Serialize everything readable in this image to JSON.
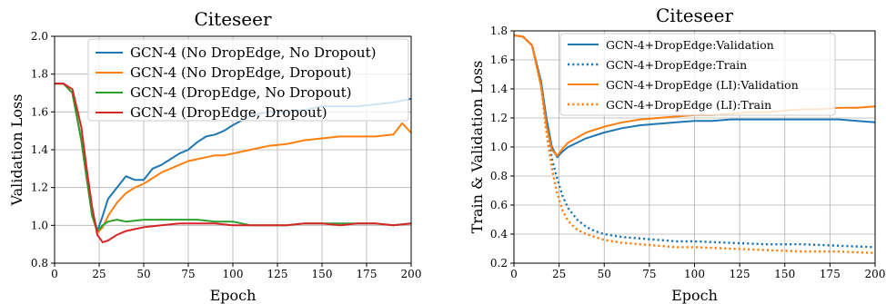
{
  "chart_data": [
    {
      "type": "line",
      "title": "Citeseer",
      "xlabel": "Epoch",
      "ylabel": "Validation Loss",
      "xlim": [
        0,
        200
      ],
      "ylim": [
        0.8,
        2.0
      ],
      "xticks": [
        0,
        25,
        50,
        75,
        100,
        125,
        150,
        175,
        200
      ],
      "yticks": [
        0.8,
        1.0,
        1.2,
        1.4,
        1.6,
        1.8,
        2.0
      ],
      "xtick_labels": [
        "0",
        "25",
        "50",
        "75",
        "100",
        "125",
        "150",
        "175",
        "200"
      ],
      "ytick_labels": [
        "0.8",
        "1.0",
        "1.2",
        "1.4",
        "1.6",
        "1.8",
        "2.0"
      ],
      "grid": true,
      "legend_position": "top-right",
      "series": [
        {
          "name": "GCN-4 (No DropEdge, No Dropout)",
          "color": "#1f77b4",
          "style": "solid",
          "x": [
            0,
            5,
            10,
            15,
            18,
            21,
            24,
            27,
            30,
            35,
            40,
            45,
            50,
            55,
            60,
            65,
            70,
            75,
            80,
            85,
            90,
            95,
            100,
            110,
            120,
            130,
            140,
            150,
            160,
            170,
            180,
            190,
            200
          ],
          "y": [
            1.75,
            1.75,
            1.7,
            1.45,
            1.25,
            1.08,
            0.97,
            1.05,
            1.14,
            1.2,
            1.26,
            1.24,
            1.24,
            1.3,
            1.32,
            1.35,
            1.38,
            1.4,
            1.44,
            1.47,
            1.48,
            1.5,
            1.53,
            1.58,
            1.6,
            1.6,
            1.61,
            1.63,
            1.63,
            1.63,
            1.64,
            1.65,
            1.67
          ]
        },
        {
          "name": "GCN-4 (No DropEdge, Dropout)",
          "color": "#ff7f0e",
          "style": "solid",
          "x": [
            0,
            5,
            10,
            15,
            18,
            21,
            24,
            27,
            30,
            35,
            40,
            45,
            50,
            55,
            60,
            65,
            70,
            75,
            80,
            85,
            90,
            95,
            100,
            110,
            120,
            130,
            140,
            150,
            160,
            170,
            180,
            190,
            195,
            200
          ],
          "y": [
            1.75,
            1.75,
            1.7,
            1.45,
            1.25,
            1.06,
            0.96,
            0.99,
            1.05,
            1.12,
            1.17,
            1.2,
            1.22,
            1.25,
            1.28,
            1.3,
            1.32,
            1.34,
            1.35,
            1.36,
            1.37,
            1.37,
            1.38,
            1.4,
            1.42,
            1.43,
            1.45,
            1.46,
            1.47,
            1.47,
            1.47,
            1.48,
            1.54,
            1.49
          ]
        },
        {
          "name": "GCN-4 (DropEdge, No Dropout)",
          "color": "#2ca02c",
          "style": "solid",
          "x": [
            0,
            5,
            10,
            15,
            18,
            21,
            24,
            27,
            30,
            35,
            40,
            50,
            60,
            70,
            80,
            90,
            100,
            110,
            120,
            130,
            140,
            150,
            160,
            170,
            180,
            190,
            200
          ],
          "y": [
            1.75,
            1.75,
            1.7,
            1.45,
            1.25,
            1.05,
            0.97,
            1.0,
            1.02,
            1.03,
            1.02,
            1.03,
            1.03,
            1.03,
            1.03,
            1.02,
            1.02,
            1.0,
            1.0,
            1.0,
            1.01,
            1.01,
            1.01,
            1.01,
            1.01,
            1.0,
            1.01
          ]
        },
        {
          "name": "GCN-4 (DropEdge, Dropout)",
          "color": "#d62728",
          "style": "solid",
          "x": [
            0,
            5,
            10,
            15,
            18,
            21,
            24,
            27,
            30,
            35,
            40,
            50,
            60,
            70,
            80,
            90,
            100,
            110,
            120,
            130,
            140,
            150,
            160,
            170,
            180,
            190,
            200
          ],
          "y": [
            1.75,
            1.75,
            1.72,
            1.52,
            1.3,
            1.1,
            0.95,
            0.91,
            0.92,
            0.95,
            0.97,
            0.99,
            1.0,
            1.01,
            1.01,
            1.01,
            1.0,
            1.0,
            1.0,
            1.0,
            1.01,
            1.01,
            1.0,
            1.01,
            1.01,
            1.0,
            1.01
          ]
        }
      ]
    },
    {
      "type": "line",
      "title": "Citeseer",
      "xlabel": "Epoch",
      "ylabel": "Train & Validation Loss",
      "xlim": [
        0,
        200
      ],
      "ylim": [
        0.2,
        1.8
      ],
      "xticks": [
        0,
        25,
        50,
        75,
        100,
        125,
        150,
        175,
        200
      ],
      "yticks": [
        0.2,
        0.4,
        0.6,
        0.8,
        1.0,
        1.2,
        1.4,
        1.6,
        1.8
      ],
      "xtick_labels": [
        "0",
        "25",
        "50",
        "75",
        "100",
        "125",
        "150",
        "175",
        "200"
      ],
      "ytick_labels": [
        "0.2",
        "0.4",
        "0.6",
        "0.8",
        "1.0",
        "1.2",
        "1.4",
        "1.6",
        "1.8"
      ],
      "grid": true,
      "legend_position": "top-right",
      "series": [
        {
          "name": "GCN-4+DropEdge:Validation",
          "color": "#1f77b4",
          "style": "solid",
          "x": [
            0,
            5,
            10,
            15,
            18,
            21,
            24,
            27,
            30,
            40,
            50,
            60,
            70,
            80,
            90,
            100,
            110,
            120,
            130,
            140,
            150,
            160,
            170,
            180,
            190,
            200
          ],
          "y": [
            1.77,
            1.76,
            1.7,
            1.45,
            1.2,
            1.0,
            0.93,
            0.97,
            1.0,
            1.06,
            1.1,
            1.13,
            1.15,
            1.16,
            1.17,
            1.18,
            1.18,
            1.19,
            1.19,
            1.19,
            1.19,
            1.19,
            1.19,
            1.19,
            1.18,
            1.17
          ]
        },
        {
          "name": "GCN-4+DropEdge:Train",
          "color": "#1f77b4",
          "style": "dotted",
          "x": [
            0,
            5,
            10,
            15,
            18,
            21,
            24,
            27,
            30,
            35,
            40,
            45,
            50,
            60,
            70,
            80,
            90,
            100,
            120,
            140,
            160,
            180,
            200
          ],
          "y": [
            1.77,
            1.76,
            1.7,
            1.45,
            1.15,
            0.92,
            0.78,
            0.66,
            0.58,
            0.5,
            0.45,
            0.42,
            0.4,
            0.38,
            0.37,
            0.36,
            0.35,
            0.35,
            0.34,
            0.33,
            0.33,
            0.32,
            0.31
          ]
        },
        {
          "name": "GCN-4+DropEdge (LI):Validation",
          "color": "#ff7f0e",
          "style": "solid",
          "x": [
            0,
            5,
            10,
            15,
            18,
            21,
            24,
            27,
            30,
            40,
            50,
            60,
            70,
            80,
            90,
            100,
            110,
            120,
            130,
            140,
            150,
            160,
            170,
            180,
            190,
            200
          ],
          "y": [
            1.77,
            1.76,
            1.7,
            1.42,
            1.15,
            0.98,
            0.94,
            0.99,
            1.03,
            1.1,
            1.14,
            1.17,
            1.19,
            1.2,
            1.21,
            1.22,
            1.22,
            1.23,
            1.24,
            1.24,
            1.25,
            1.26,
            1.26,
            1.27,
            1.27,
            1.28
          ]
        },
        {
          "name": "GCN-4+DropEdge (LI):Train",
          "color": "#ff7f0e",
          "style": "dotted",
          "x": [
            0,
            5,
            10,
            15,
            18,
            21,
            24,
            27,
            30,
            35,
            40,
            45,
            50,
            60,
            70,
            80,
            90,
            100,
            120,
            140,
            160,
            180,
            200
          ],
          "y": [
            1.77,
            1.76,
            1.7,
            1.42,
            1.1,
            0.85,
            0.68,
            0.56,
            0.49,
            0.43,
            0.4,
            0.38,
            0.36,
            0.34,
            0.33,
            0.32,
            0.31,
            0.31,
            0.3,
            0.29,
            0.28,
            0.28,
            0.27
          ]
        }
      ]
    }
  ]
}
